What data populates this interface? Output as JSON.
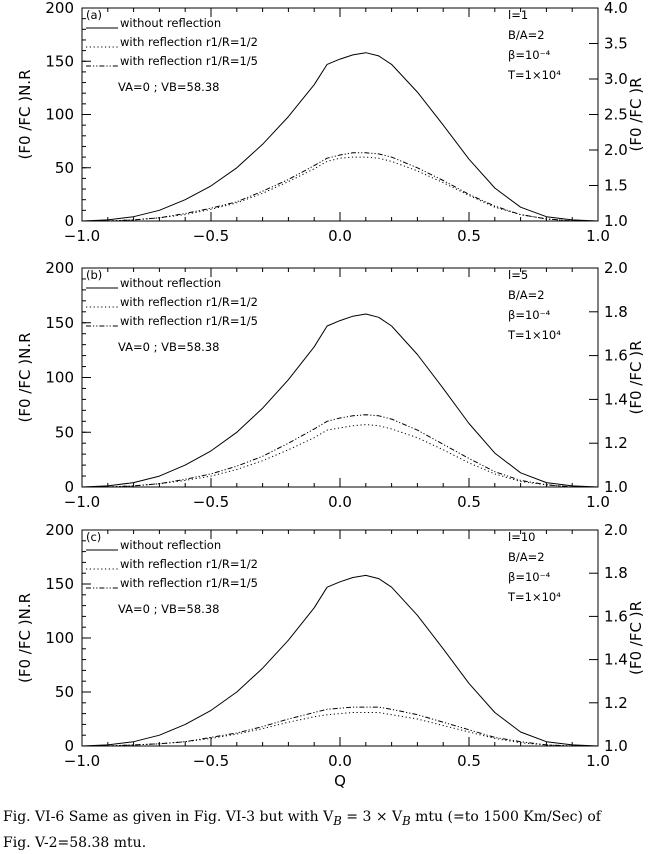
{
  "caption": {
    "line1": "Fig. VI-6 Same as given in Fig. VI-3 but with V",
    "vb_sub": "B",
    "eq": " = 3 × V",
    "vb_sub2": "B",
    "rest": " mtu (=to 1500 Km/Sec) of",
    "line2": "Fig. V-2=58.38 mtu."
  },
  "chart_data": [
    {
      "type": "line",
      "panel_label": "(a)",
      "xlabel": "",
      "ylabel_left": "(F0 /FC )N.R",
      "ylabel_right": "(F0 /FC )R",
      "xlim": [
        -1.0,
        1.0
      ],
      "ylim_left": [
        0,
        200
      ],
      "ylim_right": [
        1.0,
        4.0
      ],
      "x_ticks": [
        "-1.0",
        "-0.5",
        "0.0",
        "0.5",
        "1.0"
      ],
      "y_ticks_left": [
        "0",
        "50",
        "100",
        "150",
        "200"
      ],
      "y_ticks_right": [
        "1.0",
        "1.5",
        "2.0",
        "2.5",
        "3.0",
        "3.5",
        "4.0"
      ],
      "legend": [
        "without reflection",
        "with reflection r1/R=1/2",
        "with reflection r1/R=1/5"
      ],
      "velocity_note": "VA=0 ; VB=58.38",
      "params": [
        "l=1",
        "B/A=2",
        "β=10⁻⁴",
        "T=1×10⁴"
      ],
      "x": [
        -1.0,
        -0.9,
        -0.8,
        -0.7,
        -0.6,
        -0.5,
        -0.4,
        -0.3,
        -0.2,
        -0.1,
        -0.05,
        0.0,
        0.05,
        0.1,
        0.15,
        0.2,
        0.3,
        0.4,
        0.5,
        0.6,
        0.7,
        0.8,
        0.9,
        1.0
      ],
      "series": [
        {
          "name": "without reflection",
          "style": "solid",
          "values": [
            0,
            1,
            4,
            10,
            20,
            33,
            50,
            72,
            98,
            128,
            147,
            152,
            156,
            158,
            155,
            147,
            121,
            90,
            58,
            31,
            13,
            4,
            1,
            0
          ]
        },
        {
          "name": "with reflection r1/R=1/2",
          "style": "dotted",
          "values": [
            0,
            0,
            1,
            3,
            6,
            11,
            17,
            26,
            37,
            49,
            56,
            59,
            60,
            60,
            59,
            56,
            47,
            36,
            24,
            13,
            6,
            2,
            0,
            0
          ]
        },
        {
          "name": "with reflection r1/R=1/5",
          "style": "dashdot",
          "values": [
            0,
            0,
            1,
            3,
            7,
            12,
            18,
            28,
            39,
            52,
            59,
            62,
            64,
            64,
            63,
            60,
            50,
            38,
            25,
            14,
            6,
            2,
            0,
            0
          ]
        }
      ]
    },
    {
      "type": "line",
      "panel_label": "(b)",
      "xlabel": "",
      "ylabel_left": "(F0 /FC )N.R",
      "ylabel_right": "(F0 /FC )R",
      "xlim": [
        -1.0,
        1.0
      ],
      "ylim_left": [
        0,
        200
      ],
      "ylim_right": [
        1.0,
        2.0
      ],
      "x_ticks": [
        "-1.0",
        "-0.5",
        "0.0",
        "0.5",
        "1.0"
      ],
      "y_ticks_left": [
        "0",
        "50",
        "100",
        "150",
        "200"
      ],
      "y_ticks_right": [
        "1.0",
        "1.2",
        "1.4",
        "1.6",
        "1.8",
        "2.0"
      ],
      "legend": [
        "without reflection",
        "with reflection r1/R=1/2",
        "with reflection r1/R=1/5"
      ],
      "velocity_note": "VA=0 ; VB=58.38",
      "params": [
        "l=5",
        "B/A=2",
        "β=10⁻⁴",
        "T=1×10⁴"
      ],
      "x": [
        -1.0,
        -0.9,
        -0.8,
        -0.7,
        -0.6,
        -0.5,
        -0.4,
        -0.3,
        -0.2,
        -0.1,
        -0.05,
        0.0,
        0.05,
        0.1,
        0.15,
        0.2,
        0.3,
        0.4,
        0.5,
        0.6,
        0.7,
        0.8,
        0.9,
        1.0
      ],
      "series": [
        {
          "name": "without reflection",
          "style": "solid",
          "values": [
            0,
            1,
            4,
            10,
            20,
            33,
            50,
            72,
            98,
            128,
            147,
            152,
            156,
            158,
            155,
            147,
            121,
            90,
            58,
            31,
            13,
            4,
            1,
            0
          ]
        },
        {
          "name": "with reflection r1/R=1/2",
          "style": "dotted",
          "values": [
            0,
            0,
            1,
            3,
            6,
            10,
            16,
            24,
            34,
            45,
            52,
            54,
            56,
            57,
            56,
            53,
            45,
            34,
            22,
            12,
            5,
            2,
            0,
            0
          ]
        },
        {
          "name": "with reflection r1/R=1/5",
          "style": "dashdot",
          "values": [
            0,
            0,
            1,
            3,
            7,
            12,
            19,
            28,
            40,
            53,
            60,
            63,
            65,
            66,
            65,
            62,
            52,
            39,
            26,
            14,
            6,
            2,
            0,
            0
          ]
        }
      ]
    },
    {
      "type": "line",
      "panel_label": "(c)",
      "xlabel": "Q",
      "ylabel_left": "(F0 /FC )N.R",
      "ylabel_right": "(F0 /FC )R",
      "xlim": [
        -1.0,
        1.0
      ],
      "ylim_left": [
        0,
        200
      ],
      "ylim_right": [
        1.0,
        2.0
      ],
      "x_ticks": [
        "-1.0",
        "-0.5",
        "0.0",
        "0.5",
        "1.0"
      ],
      "y_ticks_left": [
        "0",
        "50",
        "100",
        "150",
        "200"
      ],
      "y_ticks_right": [
        "1.0",
        "1.2",
        "1.4",
        "1.6",
        "1.8",
        "2.0"
      ],
      "legend": [
        "without reflection",
        "with reflection r1/R=1/2",
        "with reflection r1/R=1/5"
      ],
      "velocity_note": "VA=0 ; VB=58.38",
      "params": [
        "l=10",
        "B/A=2",
        "β=10⁻⁴",
        "T=1×10⁴"
      ],
      "x": [
        -1.0,
        -0.9,
        -0.8,
        -0.7,
        -0.6,
        -0.5,
        -0.4,
        -0.3,
        -0.2,
        -0.1,
        -0.05,
        0.0,
        0.05,
        0.1,
        0.15,
        0.2,
        0.3,
        0.4,
        0.5,
        0.6,
        0.7,
        0.8,
        0.9,
        1.0
      ],
      "series": [
        {
          "name": "without reflection",
          "style": "solid",
          "values": [
            0,
            1,
            4,
            10,
            20,
            33,
            50,
            72,
            98,
            128,
            147,
            152,
            156,
            158,
            155,
            147,
            121,
            90,
            58,
            31,
            13,
            4,
            1,
            0
          ]
        },
        {
          "name": "with reflection r1/R=1/2",
          "style": "dotted",
          "values": [
            0,
            0,
            1,
            2,
            4,
            7,
            11,
            16,
            22,
            27,
            29,
            30,
            31,
            31,
            31,
            29,
            25,
            19,
            13,
            7,
            3,
            1,
            0,
            0
          ]
        },
        {
          "name": "with reflection r1/R=1/5",
          "style": "dashdot",
          "values": [
            0,
            0,
            1,
            2,
            4,
            8,
            12,
            18,
            25,
            31,
            34,
            35,
            36,
            36,
            36,
            34,
            29,
            22,
            15,
            8,
            4,
            1,
            0,
            0
          ]
        }
      ]
    }
  ]
}
